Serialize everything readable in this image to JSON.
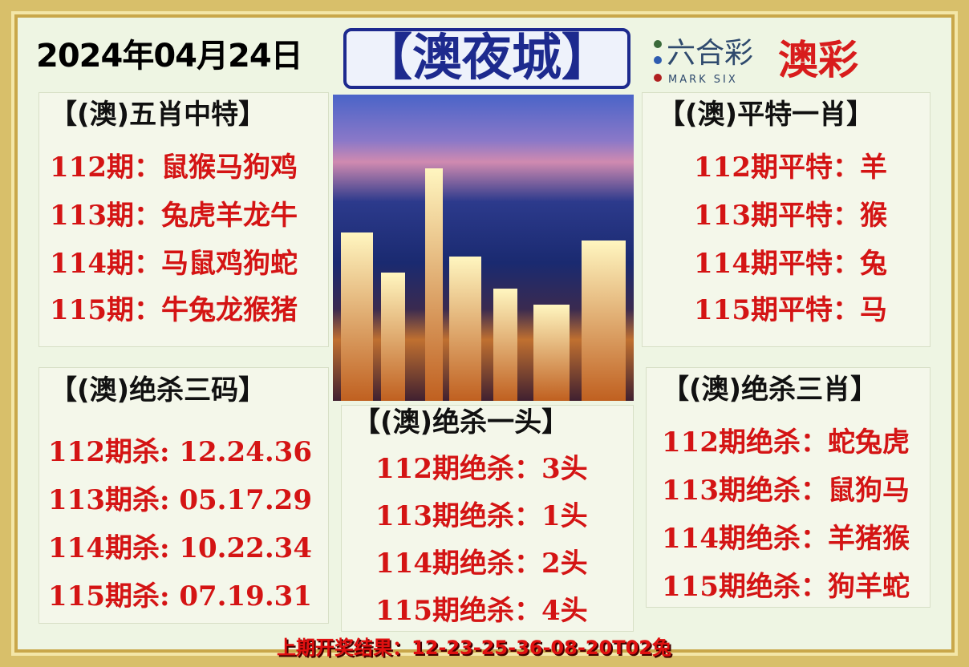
{
  "header": {
    "date": "2024年04月24日",
    "brand": "【澳夜城】",
    "logo_cn": "六合彩",
    "logo_en": "MARK SIX",
    "logo_right": "澳彩"
  },
  "colors": {
    "accent": "#d41414",
    "brand": "#1d2a8e",
    "background": "#eef5e3",
    "border": "#d8bf6a"
  },
  "sections": {
    "five_zodiac": {
      "title": "【(澳)五肖中特】",
      "items": [
        "112期：鼠猴马狗鸡",
        "113期：兔虎羊龙牛",
        "114期：马鼠鸡狗蛇",
        "115期：牛兔龙猴猪"
      ]
    },
    "flat_special": {
      "title": "【(澳)平特一肖】",
      "items": [
        "112期平特：羊",
        "113期平特：猴",
        "114期平特：兔",
        "115期平特：马"
      ]
    },
    "kill_three_codes": {
      "title": "【(澳)绝杀三码】",
      "items": [
        "112期杀: 12.24.36",
        "113期杀: 05.17.29",
        "114期杀: 10.22.34",
        "115期杀: 07.19.31"
      ]
    },
    "kill_one_head": {
      "title": "【(澳)绝杀一头】",
      "items": [
        "112期绝杀：3头",
        "113期绝杀：1头",
        "114期绝杀：2头",
        "115期绝杀：4头"
      ]
    },
    "kill_three_zodiac": {
      "title": "【(澳)绝杀三肖】",
      "items": [
        "112期绝杀：蛇兔虎",
        "113期绝杀：鼠狗马",
        "114期绝杀：羊猪猴",
        "115期绝杀：狗羊蛇"
      ]
    }
  },
  "footer": {
    "last_result": "上期开奖结果：12-23-25-36-08-20T02兔"
  }
}
